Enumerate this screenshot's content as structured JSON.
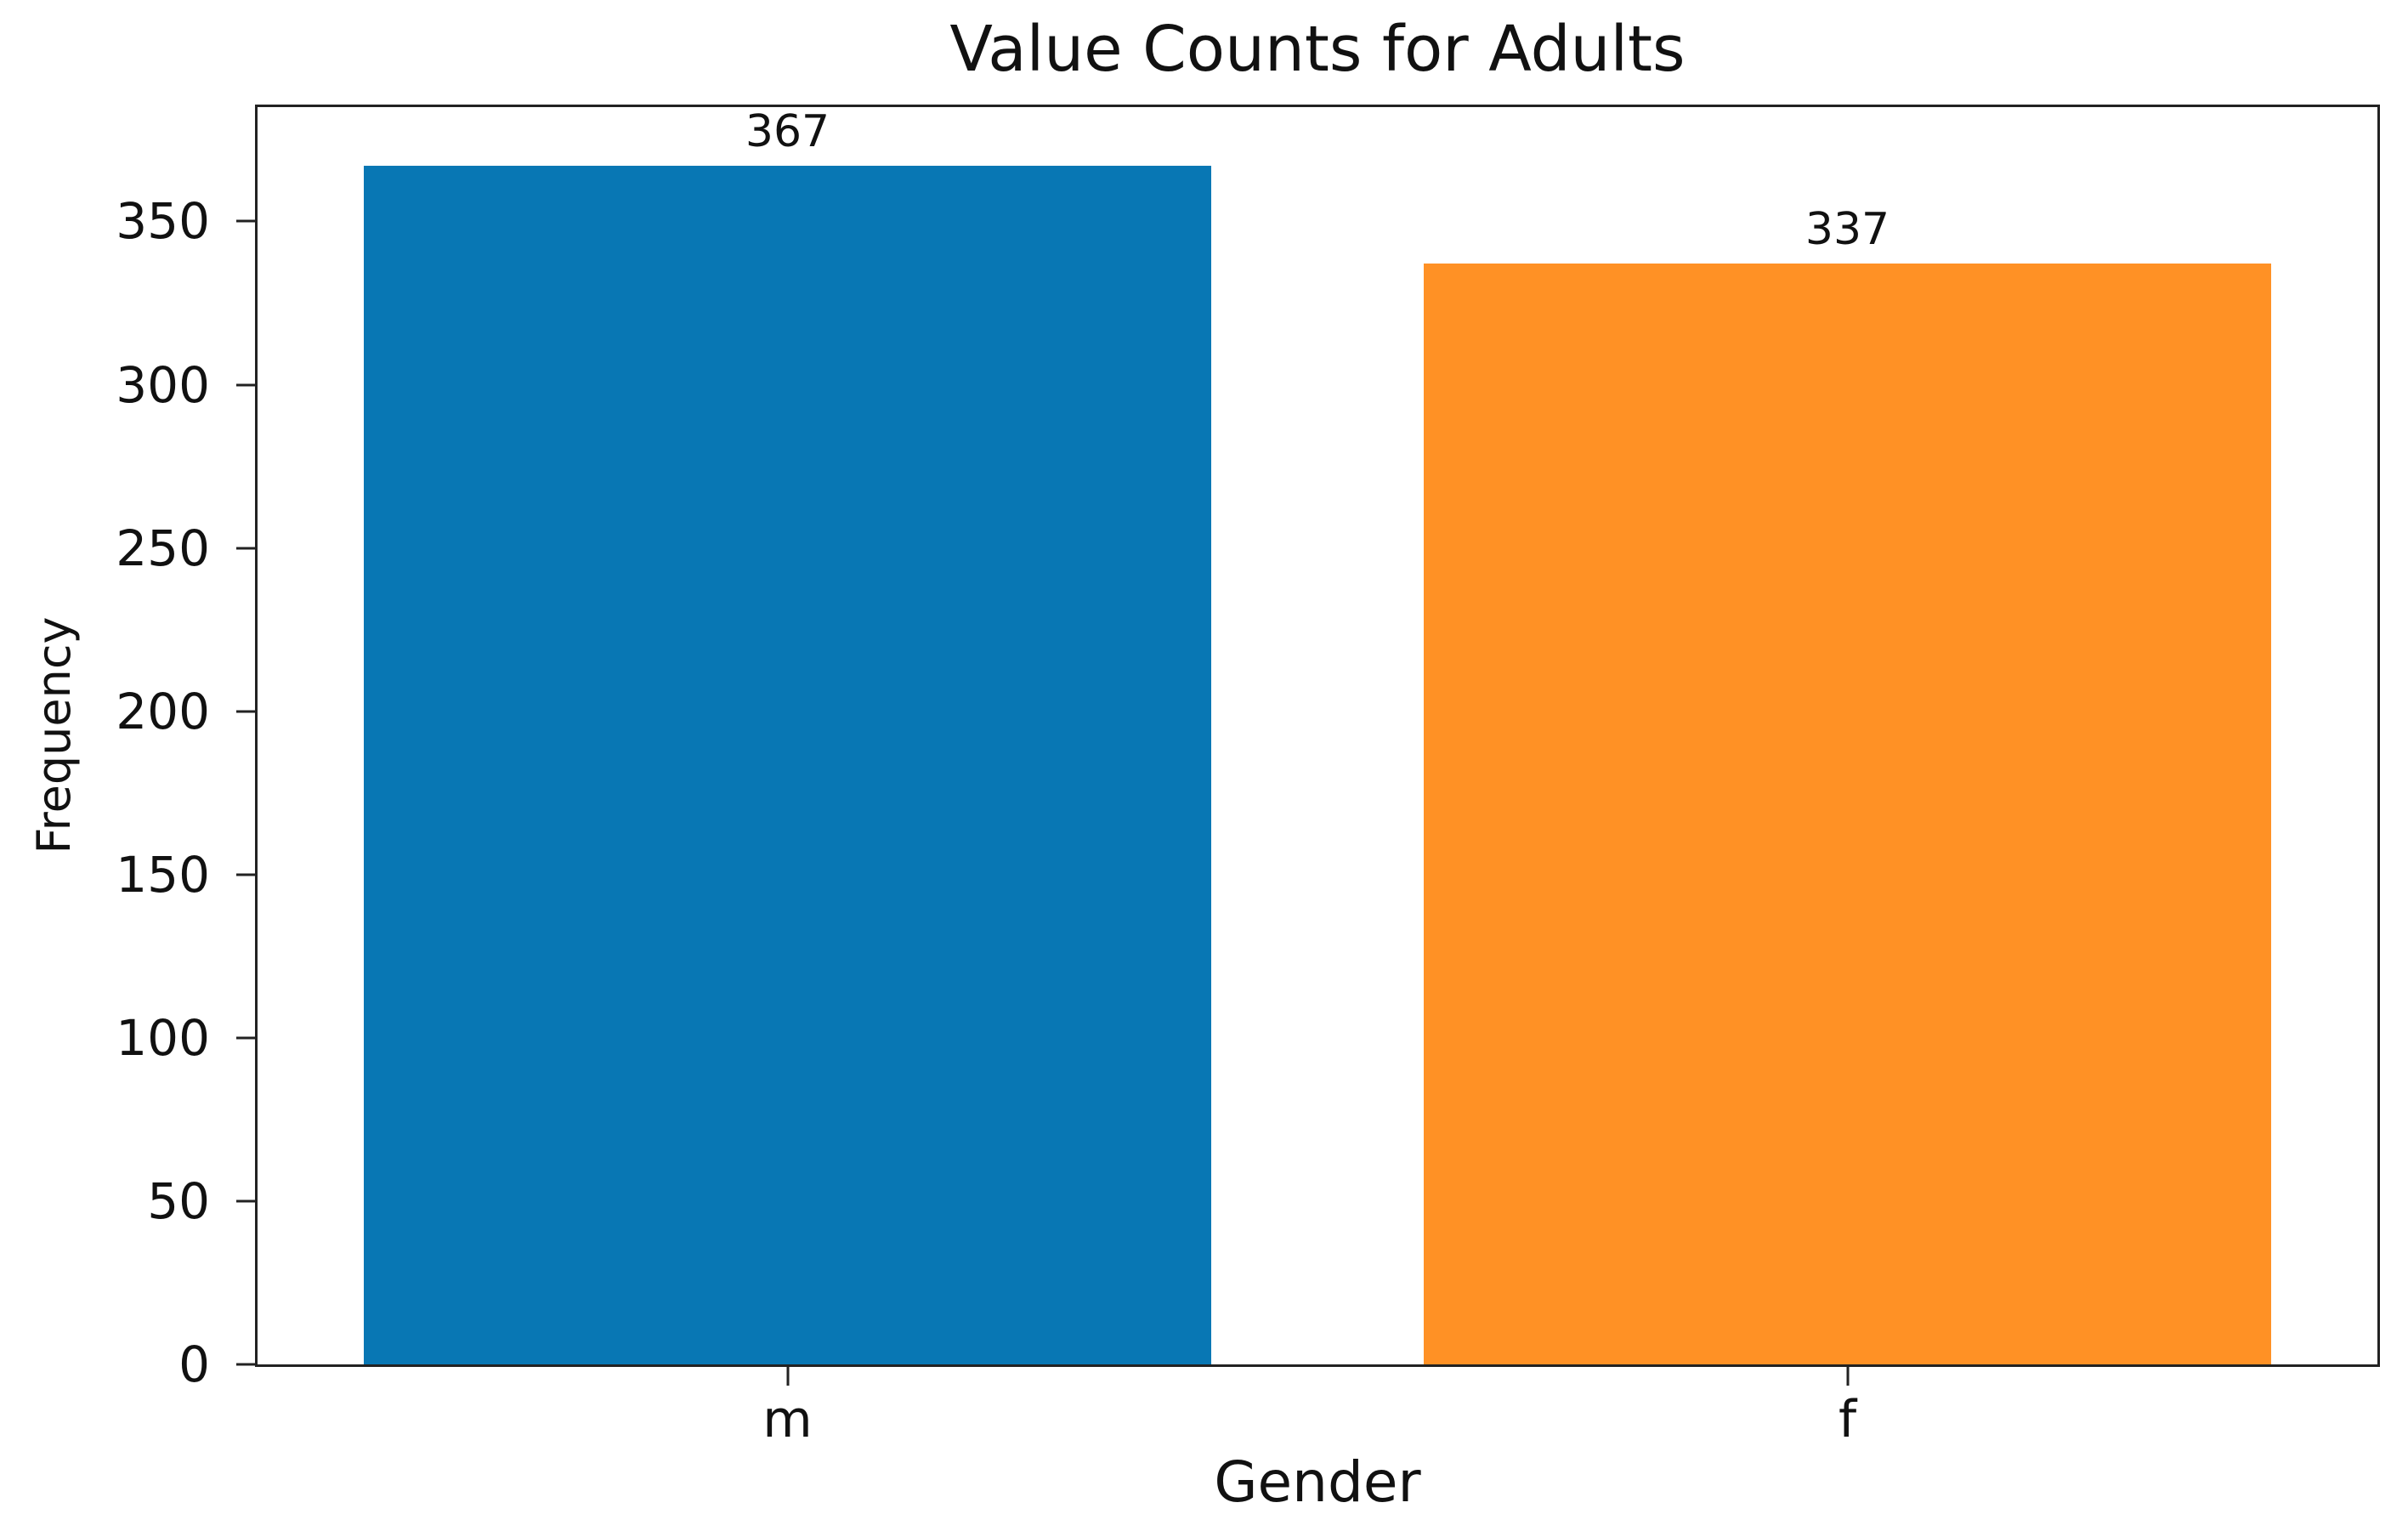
{
  "chart_data": {
    "type": "bar",
    "title": "Value Counts for Adults",
    "xlabel": "Gender",
    "ylabel": "Frequency",
    "categories": [
      "m",
      "f"
    ],
    "values": [
      367,
      337
    ],
    "bar_value_labels": [
      "367",
      "337"
    ],
    "series_colors": [
      "#0877b4",
      "#ff9125"
    ],
    "yticks": [
      0,
      50,
      100,
      150,
      200,
      250,
      300,
      350
    ],
    "ylim": [
      0,
      385
    ],
    "xlim": [
      -0.5,
      1.5
    ],
    "bar_width": 0.8,
    "grid": false,
    "legend": false,
    "background": "#ffffff",
    "axis_color": "#222222",
    "text_color": "#111111"
  }
}
